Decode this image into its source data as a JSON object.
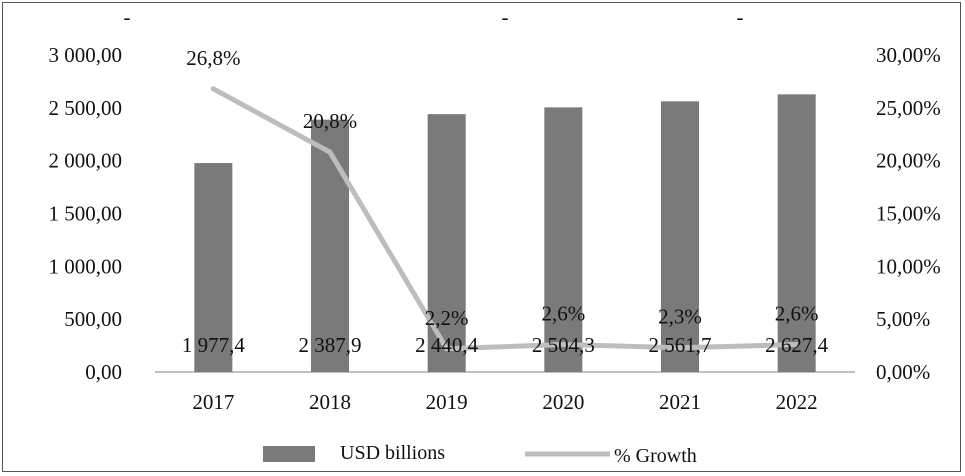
{
  "chart_data": {
    "type": "bar",
    "categories": [
      "2017",
      "2018",
      "2019",
      "2020",
      "2021",
      "2022"
    ],
    "series": [
      {
        "name": "USD billions",
        "type": "bar",
        "axis": "left",
        "values": [
          1977.4,
          2387.9,
          2440.4,
          2504.3,
          2561.7,
          2627.4
        ],
        "labels": [
          "1 977,4",
          "2 387,9",
          "2 440,4",
          "2 504,3",
          "2 561,7",
          "2 627,4"
        ],
        "color": "#7a7a7a"
      },
      {
        "name": "% Growth",
        "type": "line",
        "axis": "right",
        "values": [
          26.8,
          20.8,
          2.2,
          2.6,
          2.3,
          2.6
        ],
        "labels": [
          "26,8%",
          "20,8%",
          "2,2%",
          "2,6%",
          "2,3%",
          "2,6%"
        ],
        "color": "#bdbdbd"
      }
    ],
    "y_left": {
      "ylim": [
        0,
        3000
      ],
      "ticks": [
        0,
        500,
        1000,
        1500,
        2000,
        2500,
        3000
      ],
      "tick_labels": [
        "0,00",
        "500,00",
        "1 000,00",
        "1 500,00",
        "2 000,00",
        "2 500,00",
        "3 000,00"
      ]
    },
    "y_right": {
      "ylim": [
        0,
        30
      ],
      "ticks": [
        0,
        5,
        10,
        15,
        20,
        25,
        30
      ],
      "tick_labels": [
        "0,00%",
        "5,00%",
        "10,00%",
        "15,00%",
        "20,00%",
        "25,00%",
        "30,00%"
      ]
    },
    "top_marks": [
      "-",
      "-",
      "-"
    ],
    "grid": false,
    "legend": {
      "position": "bottom",
      "items": [
        "USD billions",
        "% Growth"
      ]
    },
    "title": "",
    "xlabel": "",
    "ylabel": ""
  }
}
